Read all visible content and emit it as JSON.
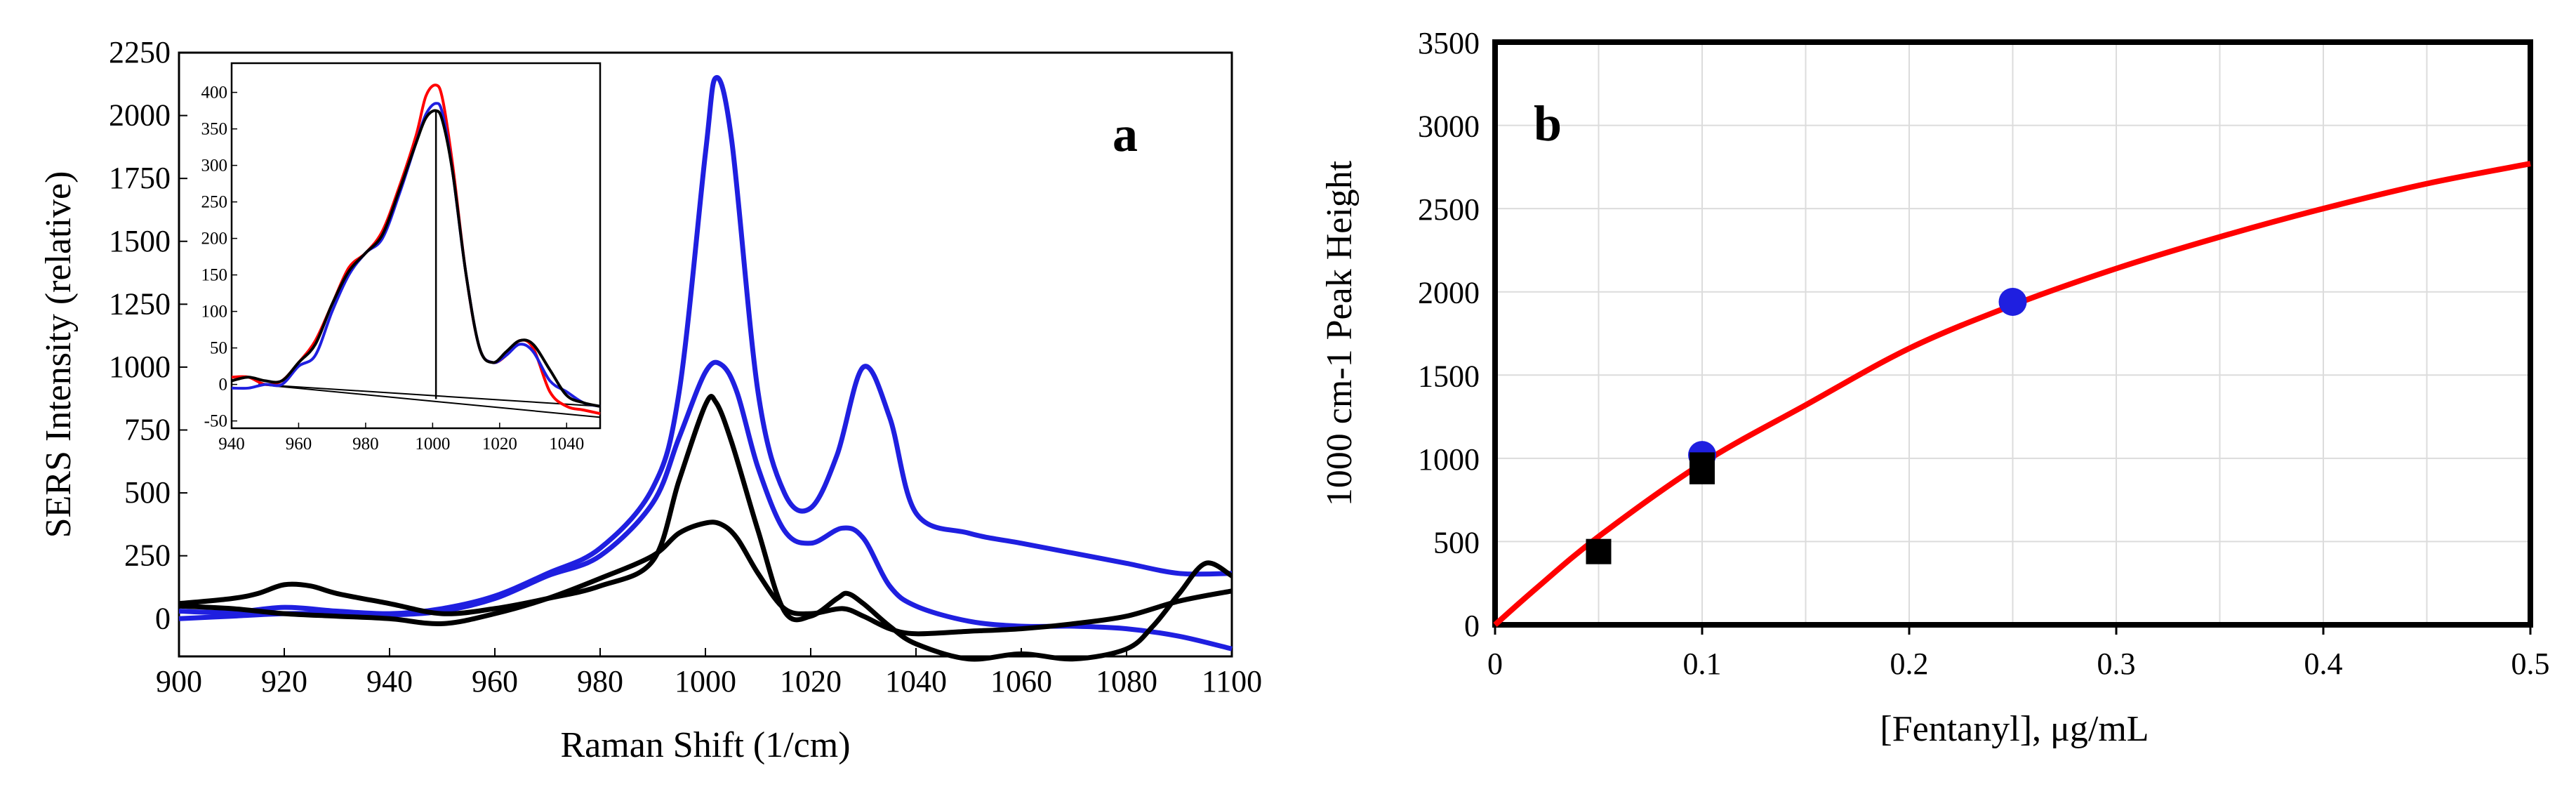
{
  "colors": {
    "red": "#ff0000",
    "blue": "#1f1fe0",
    "black": "#000000",
    "grid": "#dcdcdc"
  },
  "chart_data": [
    {
      "type": "line",
      "panel_label": "a",
      "xlabel": "Raman Shift (1/cm)",
      "ylabel": "SERS Intensity (relative)",
      "xlim": [
        900,
        1100
      ],
      "ylim": [
        -150,
        2250
      ],
      "xticks": [
        900,
        920,
        940,
        960,
        980,
        1000,
        1020,
        1040,
        1060,
        1080,
        1100
      ],
      "yticks": [
        2250,
        2000,
        1750,
        1500,
        1250,
        1000,
        750,
        500,
        250,
        0
      ],
      "ytick_labels": [
        "2250",
        "2000",
        "1750",
        "1500",
        "1250",
        "1000",
        "750",
        "500",
        "250",
        "0"
      ],
      "grid": false,
      "series": [
        {
          "color": "blue",
          "points": [
            [
              900,
              30
            ],
            [
              910,
              25
            ],
            [
              920,
              45
            ],
            [
              930,
              30
            ],
            [
              940,
              20
            ],
            [
              950,
              40
            ],
            [
              960,
              90
            ],
            [
              970,
              180
            ],
            [
              980,
              280
            ],
            [
              990,
              520
            ],
            [
              995,
              900
            ],
            [
              1000,
              1850
            ],
            [
              1002,
              2150
            ],
            [
              1005,
              1900
            ],
            [
              1010,
              900
            ],
            [
              1015,
              500
            ],
            [
              1020,
              440
            ],
            [
              1025,
              650
            ],
            [
              1030,
              1000
            ],
            [
              1035,
              800
            ],
            [
              1040,
              420
            ],
            [
              1050,
              340
            ],
            [
              1060,
              300
            ],
            [
              1070,
              260
            ],
            [
              1080,
              220
            ],
            [
              1090,
              180
            ],
            [
              1100,
              180
            ]
          ]
        },
        {
          "color": "blue",
          "points": [
            [
              900,
              0
            ],
            [
              910,
              10
            ],
            [
              920,
              20
            ],
            [
              930,
              20
            ],
            [
              940,
              15
            ],
            [
              950,
              30
            ],
            [
              960,
              80
            ],
            [
              970,
              170
            ],
            [
              980,
              250
            ],
            [
              990,
              460
            ],
            [
              995,
              720
            ],
            [
              1000,
              980
            ],
            [
              1003,
              1010
            ],
            [
              1006,
              900
            ],
            [
              1010,
              600
            ],
            [
              1015,
              350
            ],
            [
              1020,
              300
            ],
            [
              1026,
              360
            ],
            [
              1030,
              320
            ],
            [
              1035,
              130
            ],
            [
              1040,
              50
            ],
            [
              1050,
              -10
            ],
            [
              1060,
              -30
            ],
            [
              1070,
              -30
            ],
            [
              1080,
              -40
            ],
            [
              1090,
              -70
            ],
            [
              1100,
              -120
            ]
          ]
        },
        {
          "color": "black",
          "points": [
            [
              900,
              60
            ],
            [
              910,
              80
            ],
            [
              915,
              100
            ],
            [
              920,
              135
            ],
            [
              925,
              130
            ],
            [
              930,
              100
            ],
            [
              940,
              60
            ],
            [
              950,
              20
            ],
            [
              960,
              40
            ],
            [
              970,
              80
            ],
            [
              980,
              130
            ],
            [
              990,
              230
            ],
            [
              995,
              550
            ],
            [
              1000,
              850
            ],
            [
              1002,
              860
            ],
            [
              1005,
              700
            ],
            [
              1010,
              350
            ],
            [
              1015,
              30
            ],
            [
              1020,
              10
            ],
            [
              1025,
              80
            ],
            [
              1027,
              100
            ],
            [
              1030,
              60
            ],
            [
              1035,
              -30
            ],
            [
              1040,
              -100
            ],
            [
              1050,
              -160
            ],
            [
              1060,
              -140
            ],
            [
              1070,
              -160
            ],
            [
              1080,
              -120
            ],
            [
              1085,
              -30
            ],
            [
              1090,
              100
            ],
            [
              1095,
              220
            ],
            [
              1100,
              170
            ]
          ]
        },
        {
          "color": "black",
          "points": [
            [
              900,
              50
            ],
            [
              910,
              40
            ],
            [
              920,
              20
            ],
            [
              930,
              10
            ],
            [
              940,
              0
            ],
            [
              950,
              -20
            ],
            [
              960,
              20
            ],
            [
              970,
              80
            ],
            [
              980,
              160
            ],
            [
              990,
              250
            ],
            [
              995,
              340
            ],
            [
              1000,
              380
            ],
            [
              1003,
              375
            ],
            [
              1006,
              320
            ],
            [
              1010,
              180
            ],
            [
              1015,
              40
            ],
            [
              1020,
              20
            ],
            [
              1026,
              40
            ],
            [
              1030,
              10
            ],
            [
              1035,
              -40
            ],
            [
              1040,
              -60
            ],
            [
              1050,
              -50
            ],
            [
              1060,
              -40
            ],
            [
              1070,
              -20
            ],
            [
              1080,
              10
            ],
            [
              1090,
              70
            ],
            [
              1100,
              110
            ]
          ]
        }
      ],
      "inset": {
        "xlim": [
          940,
          1050
        ],
        "ylim": [
          -60,
          440
        ],
        "xticks": [
          940,
          960,
          980,
          1000,
          1020,
          1040
        ],
        "yticks": [
          400,
          350,
          300,
          250,
          200,
          150,
          100,
          50,
          0,
          -50
        ],
        "ytick_labels": [
          "400",
          "350",
          "300",
          "250",
          "200",
          "150",
          "100",
          "50",
          "0",
          "-50"
        ],
        "series": [
          {
            "color": "red",
            "points": [
              [
                940,
                10
              ],
              [
                945,
                10
              ],
              [
                950,
                0
              ],
              [
                955,
                5
              ],
              [
                960,
                30
              ],
              [
                965,
                60
              ],
              [
                970,
                110
              ],
              [
                975,
                160
              ],
              [
                980,
                180
              ],
              [
                985,
                210
              ],
              [
                990,
                270
              ],
              [
                995,
                340
              ],
              [
                998,
                395
              ],
              [
                1001,
                410
              ],
              [
                1003,
                390
              ],
              [
                1006,
                300
              ],
              [
                1010,
                150
              ],
              [
                1014,
                50
              ],
              [
                1018,
                30
              ],
              [
                1022,
                40
              ],
              [
                1026,
                60
              ],
              [
                1030,
                50
              ],
              [
                1035,
                -10
              ],
              [
                1040,
                -30
              ],
              [
                1045,
                -35
              ],
              [
                1050,
                -40
              ]
            ]
          },
          {
            "color": "blue",
            "points": [
              [
                940,
                -5
              ],
              [
                945,
                -5
              ],
              [
                950,
                0
              ],
              [
                955,
                0
              ],
              [
                960,
                25
              ],
              [
                965,
                40
              ],
              [
                970,
                100
              ],
              [
                975,
                150
              ],
              [
                980,
                180
              ],
              [
                985,
                200
              ],
              [
                990,
                260
              ],
              [
                995,
                330
              ],
              [
                998,
                370
              ],
              [
                1001,
                385
              ],
              [
                1003,
                370
              ],
              [
                1006,
                290
              ],
              [
                1010,
                150
              ],
              [
                1014,
                50
              ],
              [
                1018,
                30
              ],
              [
                1022,
                40
              ],
              [
                1026,
                55
              ],
              [
                1030,
                45
              ],
              [
                1035,
                5
              ],
              [
                1040,
                -10
              ],
              [
                1045,
                -25
              ],
              [
                1050,
                -30
              ]
            ]
          },
          {
            "color": "black",
            "points": [
              [
                940,
                5
              ],
              [
                945,
                10
              ],
              [
                950,
                5
              ],
              [
                955,
                5
              ],
              [
                960,
                30
              ],
              [
                965,
                55
              ],
              [
                970,
                110
              ],
              [
                975,
                155
              ],
              [
                980,
                180
              ],
              [
                985,
                205
              ],
              [
                990,
                265
              ],
              [
                995,
                330
              ],
              [
                998,
                365
              ],
              [
                1001,
                375
              ],
              [
                1003,
                360
              ],
              [
                1006,
                290
              ],
              [
                1010,
                150
              ],
              [
                1014,
                50
              ],
              [
                1018,
                30
              ],
              [
                1022,
                45
              ],
              [
                1026,
                60
              ],
              [
                1030,
                55
              ],
              [
                1035,
                20
              ],
              [
                1040,
                -15
              ],
              [
                1045,
                -25
              ],
              [
                1050,
                -30
              ]
            ]
          }
        ],
        "baselines": [
          [
            [
              948,
              0
            ],
            [
              1050,
              -45
            ]
          ],
          [
            [
              948,
              0
            ],
            [
              1050,
              -30
            ]
          ]
        ],
        "vline_x": 1001
      }
    },
    {
      "type": "scatter",
      "panel_label": "b",
      "xlabel": "[Fentanyl],  μg/mL",
      "ylabel": "1000 cm-1 Peak Height",
      "xlim": [
        0,
        0.5
      ],
      "ylim": [
        0,
        3500
      ],
      "xticks": [
        0,
        0.1,
        0.2,
        0.3,
        0.4,
        0.5
      ],
      "xtick_labels": [
        "0",
        "0.1",
        "0.2",
        "0.3",
        "0.4",
        "0.5"
      ],
      "yticks": [
        0,
        500,
        1000,
        1500,
        2000,
        2500,
        3000,
        3500
      ],
      "ytick_labels": [
        "0",
        "500",
        "1000",
        "1500",
        "2000",
        "2500",
        "3000",
        "3500"
      ],
      "grid": true,
      "fit_curve": {
        "color": "red",
        "points": [
          [
            0,
            0
          ],
          [
            0.02,
            220
          ],
          [
            0.05,
            530
          ],
          [
            0.1,
            970
          ],
          [
            0.15,
            1320
          ],
          [
            0.2,
            1660
          ],
          [
            0.25,
            1920
          ],
          [
            0.3,
            2140
          ],
          [
            0.35,
            2330
          ],
          [
            0.4,
            2500
          ],
          [
            0.45,
            2650
          ],
          [
            0.5,
            2770
          ]
        ]
      },
      "series": [
        {
          "marker": "circle",
          "color": "blue",
          "points": [
            [
              0.1,
              1020
            ],
            [
              0.25,
              1940
            ]
          ]
        },
        {
          "marker": "square",
          "color": "black",
          "points": [
            [
              0.05,
              440
            ],
            [
              0.1,
              920
            ],
            [
              0.1,
              960
            ]
          ]
        }
      ]
    }
  ]
}
